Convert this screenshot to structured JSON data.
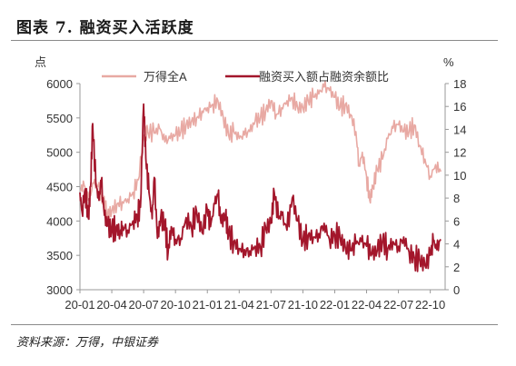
{
  "header": {
    "title": "图表 7. 融资买入活跃度"
  },
  "footer": {
    "source": "资料来源：万得，中银证券"
  },
  "chart_data": {
    "type": "line",
    "title": "图表 7. 融资买入活跃度",
    "left_axis_unit": "点",
    "right_axis_unit": "%",
    "ylim_left": [
      3000,
      6000
    ],
    "ylim_right": [
      0,
      18
    ],
    "left_ticks": [
      "6000",
      "5500",
      "5000",
      "4500",
      "4000",
      "3500",
      "3000"
    ],
    "right_ticks": [
      "18",
      "16",
      "14",
      "12",
      "10",
      "8",
      "6",
      "4",
      "2",
      "0"
    ],
    "x_ticks": [
      "20-01",
      "20-04",
      "20-07",
      "20-10",
      "21-01",
      "21-04",
      "21-07",
      "21-10",
      "22-01",
      "22-04",
      "22-07",
      "22-10"
    ],
    "grid": false,
    "legend_position": "top",
    "series": [
      {
        "name": "万得全A",
        "axis": "left",
        "color": "#e8a9a3",
        "points": [
          [
            "20-01",
            4450
          ],
          [
            "20-01.4",
            4520
          ],
          [
            "20-01.8",
            4300
          ],
          [
            "20-02.3",
            4550
          ],
          [
            "20-02.7",
            4500
          ],
          [
            "20-03.2",
            4250
          ],
          [
            "20-03.6",
            4100
          ],
          [
            "20-04",
            4150
          ],
          [
            "20-04.5",
            4250
          ],
          [
            "20-05",
            4280
          ],
          [
            "20-05.5",
            4320
          ],
          [
            "20-06",
            4420
          ],
          [
            "20-06.5",
            4600
          ],
          [
            "20-07",
            5250
          ],
          [
            "20-07.4",
            5300
          ],
          [
            "20-08",
            5280
          ],
          [
            "20-08.5",
            5350
          ],
          [
            "20-09",
            5150
          ],
          [
            "20-09.5",
            5200
          ],
          [
            "20-10",
            5250
          ],
          [
            "20-10.5",
            5300
          ],
          [
            "20-11",
            5400
          ],
          [
            "20-11.5",
            5450
          ],
          [
            "20-12",
            5500
          ],
          [
            "20-12.5",
            5600
          ],
          [
            "21-01",
            5650
          ],
          [
            "21-01.5",
            5700
          ],
          [
            "21-02",
            5750
          ],
          [
            "21-02.5",
            5500
          ],
          [
            "21-03",
            5250
          ],
          [
            "21-03.5",
            5300
          ],
          [
            "21-04",
            5200
          ],
          [
            "21-04.5",
            5250
          ],
          [
            "21-05",
            5300
          ],
          [
            "21-05.5",
            5450
          ],
          [
            "21-06",
            5500
          ],
          [
            "21-06.5",
            5600
          ],
          [
            "21-07",
            5750
          ],
          [
            "21-07.5",
            5550
          ],
          [
            "21-08",
            5650
          ],
          [
            "21-08.5",
            5750
          ],
          [
            "21-09",
            5800
          ],
          [
            "21-09.5",
            5650
          ],
          [
            "21-10",
            5650
          ],
          [
            "21-10.5",
            5750
          ],
          [
            "21-11",
            5800
          ],
          [
            "21-11.5",
            5850
          ],
          [
            "21-12",
            5950
          ],
          [
            "21-12.5",
            5900
          ],
          [
            "22-01",
            5800
          ],
          [
            "22-01.5",
            5650
          ],
          [
            "22-02",
            5700
          ],
          [
            "22-02.5",
            5550
          ],
          [
            "22-03",
            5300
          ],
          [
            "22-03.3",
            4800
          ],
          [
            "22-03.6",
            5000
          ],
          [
            "22-04",
            4650
          ],
          [
            "22-04.3",
            4300
          ],
          [
            "22-04.6",
            4500
          ],
          [
            "22-05",
            4750
          ],
          [
            "22-05.5",
            4900
          ],
          [
            "22-06",
            5200
          ],
          [
            "22-06.5",
            5350
          ],
          [
            "22-07",
            5400
          ],
          [
            "22-07.5",
            5300
          ],
          [
            "22-08",
            5300
          ],
          [
            "22-08.5",
            5400
          ],
          [
            "22-09",
            5100
          ],
          [
            "22-09.5",
            4900
          ],
          [
            "22-10",
            4650
          ],
          [
            "22-10.5",
            4820
          ],
          [
            "22-11",
            4720
          ]
        ]
      },
      {
        "name": "融资买入额占融资余额比",
        "axis": "right",
        "color": "#a3162b",
        "points": [
          [
            "20-01",
            8.5
          ],
          [
            "20-01.2",
            6.8
          ],
          [
            "20-01.5",
            8.8
          ],
          [
            "20-01.8",
            6.2
          ],
          [
            "20-02",
            9.0
          ],
          [
            "20-02.2",
            14.5
          ],
          [
            "20-02.5",
            9.2
          ],
          [
            "20-02.8",
            7.8
          ],
          [
            "20-03",
            9.5
          ],
          [
            "20-03.3",
            6.5
          ],
          [
            "20-03.6",
            5.6
          ],
          [
            "20-04",
            5.2
          ],
          [
            "20-04.4",
            5.4
          ],
          [
            "20-04.8",
            5.0
          ],
          [
            "20-05",
            5.6
          ],
          [
            "20-05.5",
            5.2
          ],
          [
            "20-06",
            6.0
          ],
          [
            "20-06.4",
            6.5
          ],
          [
            "20-06.7",
            7.2
          ],
          [
            "20-07",
            16.2
          ],
          [
            "20-07.2",
            11.5
          ],
          [
            "20-07.5",
            8.5
          ],
          [
            "20-07.8",
            6.2
          ],
          [
            "20-08",
            9.8
          ],
          [
            "20-08.3",
            4.5
          ],
          [
            "20-08.6",
            6.2
          ],
          [
            "20-09",
            5.8
          ],
          [
            "20-09.3",
            3.2
          ],
          [
            "20-09.6",
            5.5
          ],
          [
            "20-10",
            4.4
          ],
          [
            "20-10.5",
            4.5
          ],
          [
            "20-11",
            6.3
          ],
          [
            "20-11.5",
            5.5
          ],
          [
            "20-12",
            6.8
          ],
          [
            "20-12.5",
            5.0
          ],
          [
            "21-01",
            7.0
          ],
          [
            "21-01.3",
            5.5
          ],
          [
            "21-01.7",
            7.5
          ],
          [
            "21-02",
            8.2
          ],
          [
            "21-02.3",
            5.8
          ],
          [
            "21-02.7",
            6.5
          ],
          [
            "21-03",
            4.8
          ],
          [
            "21-03.5",
            4.2
          ],
          [
            "21-04",
            3.6
          ],
          [
            "21-04.5",
            3.5
          ],
          [
            "21-05",
            3.4
          ],
          [
            "21-05.5",
            3.8
          ],
          [
            "21-06",
            3.7
          ],
          [
            "21-06.5",
            5.4
          ],
          [
            "21-07",
            5.8
          ],
          [
            "21-07.3",
            8.5
          ],
          [
            "21-07.7",
            6.2
          ],
          [
            "21-08",
            6.5
          ],
          [
            "21-08.5",
            5.2
          ],
          [
            "21-09",
            8.0
          ],
          [
            "21-09.5",
            6.0
          ],
          [
            "21-10",
            4.2
          ],
          [
            "21-10.5",
            4.8
          ],
          [
            "21-11",
            4.6
          ],
          [
            "21-11.5",
            4.9
          ],
          [
            "21-12",
            5.8
          ],
          [
            "21-12.5",
            4.4
          ],
          [
            "22-01",
            4.8
          ],
          [
            "22-01.5",
            4.6
          ],
          [
            "22-02",
            3.6
          ],
          [
            "22-02.5",
            3.4
          ],
          [
            "22-03",
            4.0
          ],
          [
            "22-03.5",
            4.2
          ],
          [
            "22-04",
            3.8
          ],
          [
            "22-04.5",
            3.1
          ],
          [
            "22-05",
            3.4
          ],
          [
            "22-05.5",
            4.3
          ],
          [
            "22-06",
            3.6
          ],
          [
            "22-06.5",
            4.2
          ],
          [
            "22-07",
            3.8
          ],
          [
            "22-07.5",
            4.6
          ],
          [
            "22-08",
            3.3
          ],
          [
            "22-08.5",
            2.8
          ],
          [
            "22-09",
            2.6
          ],
          [
            "22-09.5",
            2.1
          ],
          [
            "22-10",
            3.0
          ],
          [
            "22-10.3",
            4.2
          ],
          [
            "22-10.6",
            3.5
          ],
          [
            "22-11",
            4.4
          ]
        ]
      }
    ]
  }
}
